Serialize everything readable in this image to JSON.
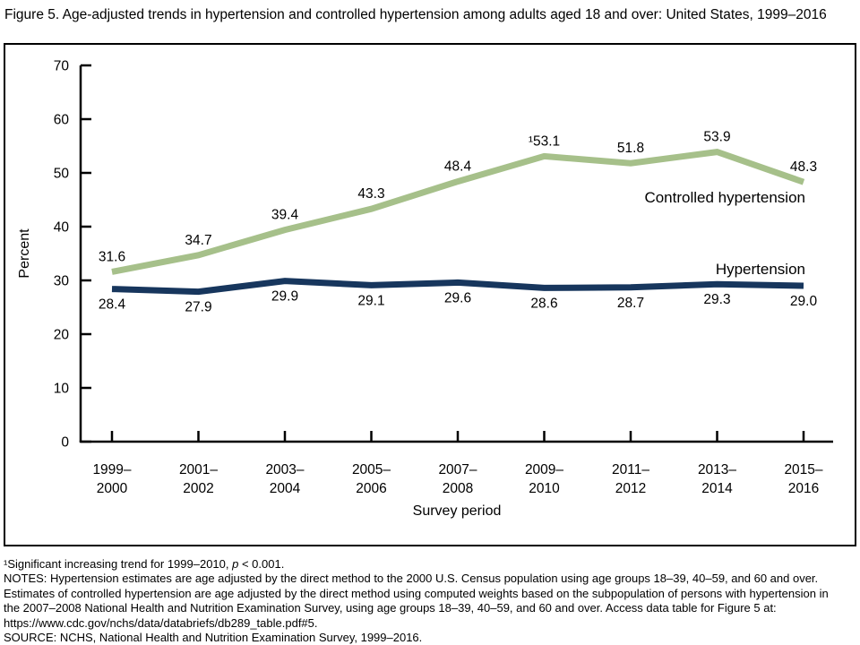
{
  "title": "Figure 5. Age-adjusted trends in hypertension and controlled hypertension among adults aged 18 and over: United States, 1999–2016",
  "chart_data": {
    "type": "line",
    "xlabel": "Survey period",
    "ylabel": "Percent",
    "ylim": [
      0,
      70
    ],
    "ytick_step": 10,
    "grid": false,
    "legend_position": "inline-right",
    "categories": [
      [
        "1999–",
        "2000"
      ],
      [
        "2001–",
        "2002"
      ],
      [
        "2003–",
        "2004"
      ],
      [
        "2005–",
        "2006"
      ],
      [
        "2007–",
        "2008"
      ],
      [
        "2009–",
        "2010"
      ],
      [
        "2011–",
        "2012"
      ],
      [
        "2013–",
        "2014"
      ],
      [
        "2015–",
        "2016"
      ]
    ],
    "series": [
      {
        "name": "Controlled hypertension",
        "color": "#a6c08a",
        "label_position": "above",
        "values": [
          31.6,
          34.7,
          39.4,
          43.3,
          48.4,
          53.1,
          51.8,
          53.9,
          48.3
        ],
        "point_labels": [
          "31.6",
          "34.7",
          "39.4",
          "43.3",
          "48.4",
          "¹53.1",
          "51.8",
          "53.9",
          "48.3"
        ]
      },
      {
        "name": "Hypertension",
        "color": "#17365d",
        "label_position": "below",
        "values": [
          28.4,
          27.9,
          29.9,
          29.1,
          29.6,
          28.6,
          28.7,
          29.3,
          29.0
        ],
        "point_labels": [
          "28.4",
          "27.9",
          "29.9",
          "29.1",
          "29.6",
          "28.6",
          "28.7",
          "29.3",
          "29.0"
        ]
      }
    ]
  },
  "footnotes": {
    "sig_pre": "¹Significant increasing trend for 1999–2010, ",
    "sig_p": "p",
    "sig_post": " < 0.001.",
    "lines": [
      "NOTES: Hypertension estimates are age adjusted by the direct method to the 2000 U.S. Census population using age groups 18–39, 40–59, and 60 and over.",
      "Estimates of controlled hypertension are age adjusted by the direct method using computed weights based on the subpopulation of persons with hypertension in",
      "the 2007–2008 National Health and Nutrition Examination Survey, using age groups 18–39, 40–59, and 60 and over. Access data table for Figure 5 at:",
      "https://www.cdc.gov/nchs/data/databriefs/db289_table.pdf#5.",
      "SOURCE: NCHS, National Health and Nutrition Examination Survey, 1999–2016."
    ]
  }
}
